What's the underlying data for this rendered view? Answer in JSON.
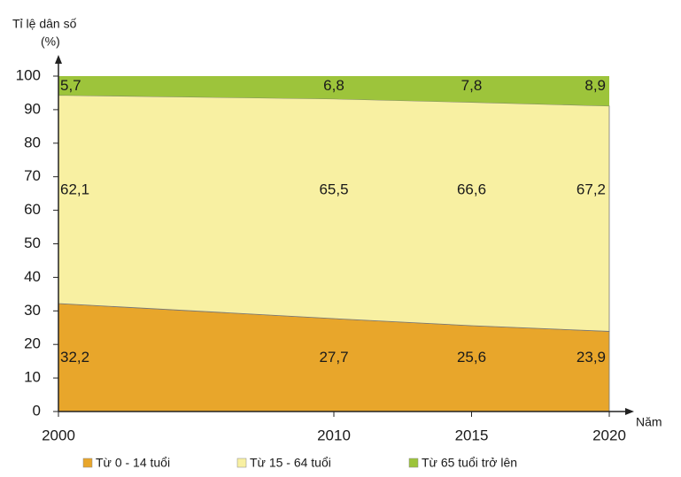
{
  "chart_data": {
    "type": "stacked-area",
    "y_label_lines": [
      "Tỉ lệ dân số",
      "(%)"
    ],
    "x_label": "Năm",
    "x": [
      2000,
      2010,
      2015,
      2020
    ],
    "xlim": [
      2000,
      2020
    ],
    "xticks": [
      2000,
      2010,
      2015,
      2020
    ],
    "ylim": [
      0,
      100
    ],
    "yticks": [
      0,
      10,
      20,
      30,
      40,
      50,
      60,
      70,
      80,
      90,
      100
    ],
    "series": [
      {
        "name": "Từ 0 - 14 tuổi",
        "color": "#e8a62b",
        "values": [
          32.2,
          27.7,
          25.6,
          23.9
        ],
        "value_labels": [
          "32,2",
          "27,7",
          "25,6",
          "23,9"
        ]
      },
      {
        "name": "Từ 15 - 64 tuổi",
        "color": "#f8f0a2",
        "values": [
          62.1,
          65.5,
          66.6,
          67.2
        ],
        "value_labels": [
          "62,1",
          "65,5",
          "66,6",
          "67,2"
        ]
      },
      {
        "name": "Từ 65 tuổi trở lên",
        "color": "#9dc43b",
        "values": [
          5.7,
          6.8,
          7.8,
          8.9
        ],
        "value_labels": [
          "5,7",
          "6,8",
          "7,8",
          "8,9"
        ]
      }
    ]
  }
}
